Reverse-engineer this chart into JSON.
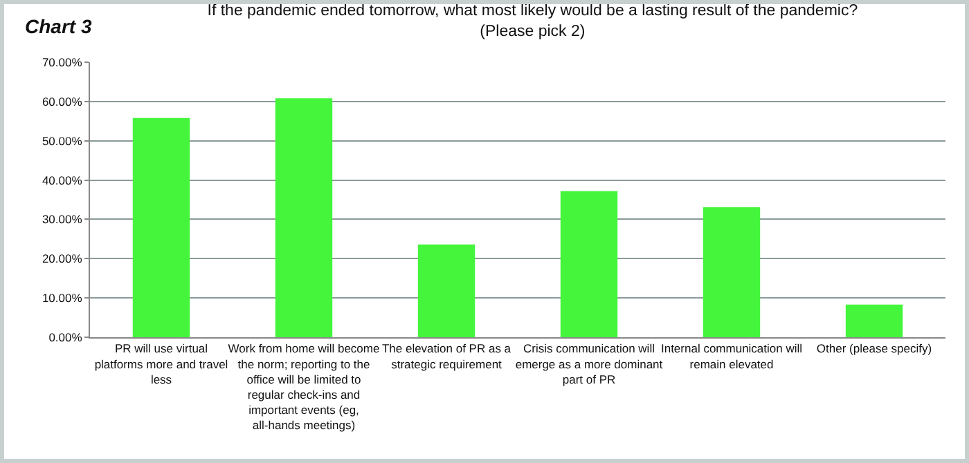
{
  "chart_data": {
    "type": "bar",
    "title": "If the pandemic ended tomorrow, what most likely would be a lasting result of the pandemic? (Please pick 2)",
    "annotations": [
      "Chart 3"
    ],
    "categories": [
      "PR will use virtual platforms more and travel less",
      "Work from home will become the norm; reporting to the office will be limited to regular check-ins and important events (eg, all-hands meetings)",
      "The elevation of PR as a strategic requirement",
      "Crisis communication will emerge as a more dominant part of PR",
      "Internal communication will remain elevated",
      "Other (please specify)"
    ],
    "values": [
      55.8,
      60.8,
      23.6,
      37.2,
      33.1,
      8.3
    ],
    "color": "#44f53c",
    "ylim": [
      0,
      70
    ],
    "yticks": [
      {
        "value": 0,
        "label": "0.00%"
      },
      {
        "value": 10,
        "label": "10.00%"
      },
      {
        "value": 20,
        "label": "20.00%"
      },
      {
        "value": 30,
        "label": "30.00%"
      },
      {
        "value": 40,
        "label": "40.00%"
      },
      {
        "value": 50,
        "label": "50.00%"
      },
      {
        "value": 60,
        "label": "60.00%"
      },
      {
        "value": 70,
        "label": "70.00%"
      }
    ],
    "grid": "y"
  }
}
